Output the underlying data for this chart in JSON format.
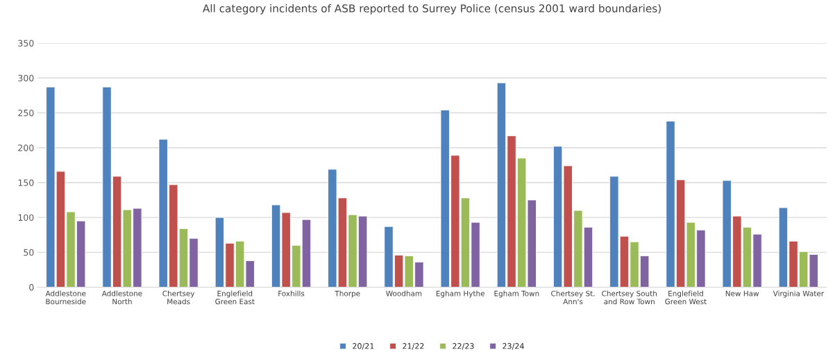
{
  "chart_data": {
    "type": "bar",
    "title": "All category incidents of ASB reported to Surrey Police (census 2001 ward boundaries)",
    "categories": [
      "Addlestone\nBourneside",
      "Addlestone\nNorth",
      "Chertsey\nMeads",
      "Englefield\nGreen East",
      "Foxhills",
      "Thorpe",
      "Woodham",
      "Egham Hythe",
      "Egham Town",
      "Chertsey St.\nAnn's",
      "Chertsey South\nand Row Town",
      "Englefield\nGreen West",
      "New Haw",
      "Virginia Water"
    ],
    "series": [
      {
        "name": "20/21",
        "color": "#4f81bd",
        "values": [
          287,
          287,
          212,
          100,
          118,
          169,
          87,
          254,
          293,
          202,
          159,
          238,
          153,
          114
        ]
      },
      {
        "name": "21/22",
        "color": "#c0504d",
        "values": [
          166,
          159,
          147,
          63,
          107,
          128,
          46,
          189,
          217,
          174,
          73,
          154,
          102,
          66
        ]
      },
      {
        "name": "22/23",
        "color": "#9bbb59",
        "values": [
          108,
          111,
          84,
          66,
          60,
          104,
          45,
          128,
          185,
          110,
          65,
          93,
          86,
          51
        ]
      },
      {
        "name": "23/24",
        "color": "#8064a2",
        "values": [
          95,
          113,
          70,
          38,
          97,
          102,
          36,
          93,
          125,
          86,
          45,
          82,
          76,
          47
        ]
      }
    ],
    "ylim": [
      0,
      350
    ],
    "yticks": [
      0,
      50,
      100,
      150,
      200,
      250,
      300,
      350
    ],
    "grid": "y",
    "legend": "bottom"
  }
}
